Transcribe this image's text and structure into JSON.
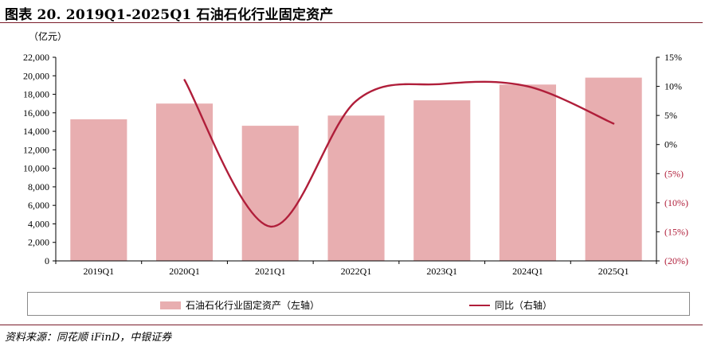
{
  "header": {
    "title": "图表 20. 2019Q1-2025Q1 石油石化行业固定资产"
  },
  "colors": {
    "bar": "#e8aeb0",
    "line": "#b01e3a",
    "neg_tick": "#b01e3a",
    "rule": "#7a1d2b"
  },
  "chart_data": {
    "type": "bar",
    "unit_label": "（亿元）",
    "categories": [
      "2019Q1",
      "2020Q1",
      "2021Q1",
      "2022Q1",
      "2023Q1",
      "2024Q1",
      "2025Q1"
    ],
    "series": [
      {
        "name": "石油石化行业固定资产（左轴）",
        "type": "bar",
        "axis": "left",
        "values": [
          15300,
          17000,
          14600,
          15700,
          17350,
          19050,
          19800
        ]
      },
      {
        "name": "同比（右轴）",
        "type": "line",
        "axis": "right",
        "smooth": true,
        "values": [
          null,
          11.1,
          -14.1,
          7.5,
          10.4,
          10.0,
          3.6
        ]
      }
    ],
    "y_left": {
      "min": 0,
      "max": 22000,
      "step": 2000,
      "ticks": [
        "0",
        "2,000",
        "4,000",
        "6,000",
        "8,000",
        "10,000",
        "12,000",
        "14,000",
        "16,000",
        "18,000",
        "20,000",
        "22,000"
      ]
    },
    "y_right": {
      "min": -20,
      "max": 15,
      "step": 5,
      "ticks": [
        "(20%)",
        "(15%)",
        "(10%)",
        "(5%)",
        "0%",
        "5%",
        "10%",
        "15%"
      ]
    },
    "grid": false,
    "legend_position": "bottom"
  },
  "legend": {
    "bar_label": "石油石化行业固定资产（左轴）",
    "line_label": "同比（右轴）"
  },
  "footer": {
    "source": "资料来源：同花顺 iFinD，中银证券"
  }
}
